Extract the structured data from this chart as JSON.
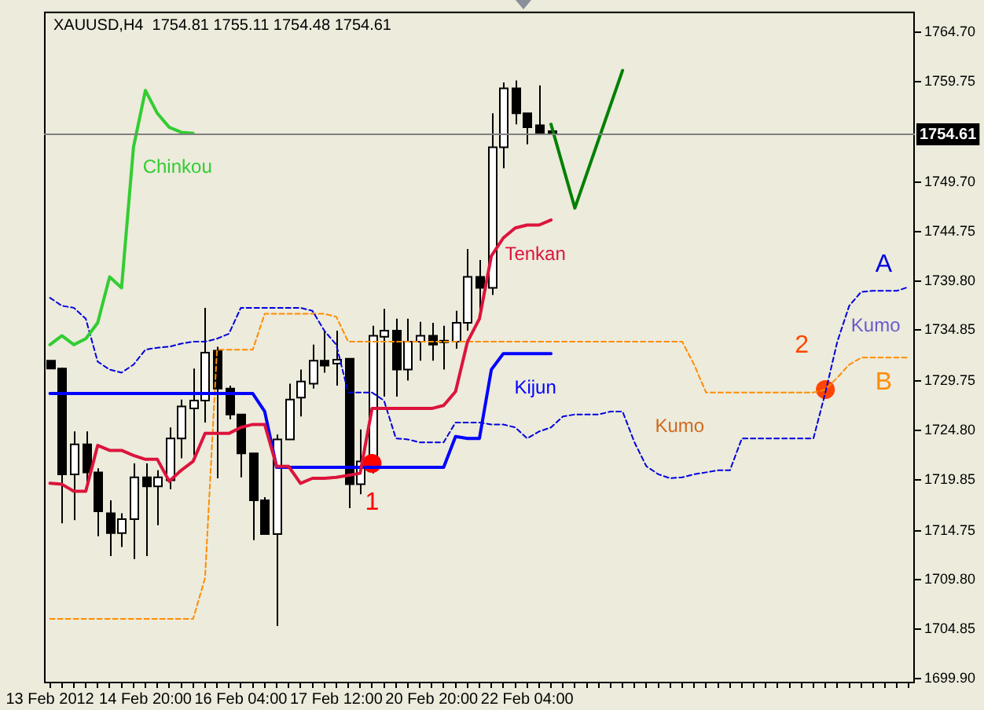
{
  "chart_data": {
    "type": "candlestick",
    "title": "XAUUSD,H4  1754.81 1755.11 1754.48 1754.61",
    "categories": [
      "13 Feb 2012",
      null,
      null,
      null,
      null,
      null,
      null,
      null,
      "14 Feb 20:00",
      null,
      null,
      null,
      null,
      null,
      null,
      null,
      "16 Feb 04:00",
      null,
      null,
      null,
      null,
      null,
      null,
      null,
      "17 Feb 12:00",
      null,
      null,
      null,
      null,
      null,
      null,
      null,
      "20 Feb 20:00",
      null,
      null,
      null,
      null,
      null,
      null,
      null,
      "22 Feb 04:00",
      null,
      null,
      null,
      null,
      null,
      null,
      null,
      null,
      null,
      null,
      null,
      null,
      null,
      null,
      null,
      null,
      null,
      null,
      null,
      null,
      null,
      null,
      null,
      null,
      null,
      null,
      null,
      null,
      null,
      null,
      null,
      null
    ],
    "ohlc": [
      [
        1731.8,
        1731.8,
        1731.0,
        1731.0
      ],
      [
        1731.0,
        1731.1,
        1715.5,
        1720.4
      ],
      [
        1720.4,
        1724.7,
        1715.8,
        1723.4
      ],
      [
        1723.4,
        1724.7,
        1719.5,
        1720.6
      ],
      [
        1720.6,
        1721.0,
        1714.2,
        1716.7
      ],
      [
        1716.5,
        1717.8,
        1712.2,
        1714.5
      ],
      [
        1714.5,
        1716.5,
        1713.1,
        1715.9
      ],
      [
        1715.9,
        1721.5,
        1711.9,
        1720.1
      ],
      [
        1720.1,
        1721.5,
        1712.2,
        1719.2
      ],
      [
        1719.2,
        1720.8,
        1715.3,
        1720.1
      ],
      [
        1719.8,
        1725.1,
        1718.9,
        1724.0
      ],
      [
        1724.0,
        1727.9,
        1722.0,
        1727.2
      ],
      [
        1727.0,
        1731.0,
        1722.3,
        1727.8
      ],
      [
        1727.8,
        1737.1,
        1725.6,
        1732.6
      ],
      [
        1732.8,
        1733.2,
        1720.0,
        1729.0
      ],
      [
        1729.0,
        1729.3,
        1725.9,
        1726.4
      ],
      [
        1726.4,
        1726.4,
        1720.1,
        1722.5
      ],
      [
        1722.5,
        1722.5,
        1713.8,
        1717.8
      ],
      [
        1717.8,
        1718.1,
        1714.4,
        1714.4
      ],
      [
        1714.4,
        1724.4,
        1705.2,
        1723.9
      ],
      [
        1723.9,
        1729.5,
        1723.9,
        1727.9
      ],
      [
        1728.1,
        1730.9,
        1726.2,
        1729.7
      ],
      [
        1729.5,
        1733.4,
        1729.0,
        1731.8
      ],
      [
        1731.8,
        1734.8,
        1730.6,
        1731.3
      ],
      [
        1731.5,
        1734.8,
        1729.3,
        1731.9
      ],
      [
        1732.0,
        1732.0,
        1717.0,
        1719.4
      ],
      [
        1719.4,
        1724.9,
        1718.4,
        1721.7
      ],
      [
        1721.2,
        1735.3,
        1720.5,
        1734.3
      ],
      [
        1734.2,
        1737.0,
        1728.2,
        1734.8
      ],
      [
        1734.8,
        1736.0,
        1728.2,
        1730.9
      ],
      [
        1730.9,
        1736.0,
        1729.8,
        1733.7
      ],
      [
        1733.7,
        1735.7,
        1731.8,
        1734.3
      ],
      [
        1734.3,
        1735.6,
        1731.8,
        1733.4
      ],
      [
        1733.8,
        1735.3,
        1730.9,
        1733.7
      ],
      [
        1733.7,
        1736.8,
        1733.0,
        1735.6
      ],
      [
        1735.6,
        1743.0,
        1734.8,
        1740.2
      ],
      [
        1740.2,
        1741.9,
        1736.8,
        1739.1
      ],
      [
        1739.1,
        1756.6,
        1738.4,
        1753.2
      ],
      [
        1753.2,
        1759.7,
        1751.1,
        1759.1
      ],
      [
        1759.1,
        1759.9,
        1755.5,
        1756.6
      ],
      [
        1756.6,
        1756.6,
        1753.5,
        1755.2
      ],
      [
        1755.4,
        1759.4,
        1754.5,
        1754.6
      ],
      [
        1754.81,
        1755.11,
        1754.48,
        1754.61
      ],
      null,
      null,
      null,
      null,
      null,
      null,
      null,
      null,
      null,
      null,
      null,
      null,
      null,
      null,
      null,
      null,
      null,
      null,
      null,
      null,
      null,
      null,
      null,
      null,
      null,
      null,
      null,
      null,
      null,
      null
    ],
    "series": [
      {
        "type": "line",
        "name": "Tenkan",
        "color": "#dc143c",
        "marker": "none",
        "line_style": "solid",
        "values": [
          1719.5,
          1719.4,
          1718.7,
          1718.7,
          1723.3,
          1722.8,
          1722.8,
          1722.3,
          1721.9,
          1721.9,
          1719.7,
          1720.8,
          1721.7,
          1724.5,
          1724.5,
          1724.5,
          1725.1,
          1725.4,
          1725.4,
          1721.2,
          1721.2,
          1719.5,
          1720.0,
          1720.0,
          1720.1,
          1720.3,
          1720.5,
          1727.0,
          1727.0,
          1727.0,
          1727.0,
          1727.0,
          1727.0,
          1727.3,
          1728.7,
          1733.7,
          1736.0,
          1742.3,
          1744.1,
          1745.1,
          1745.4,
          1745.4,
          1745.9,
          null,
          null,
          null,
          null,
          null,
          null,
          null,
          null,
          null,
          null,
          null,
          null,
          null,
          null,
          null,
          null,
          null,
          null,
          null,
          null,
          null,
          null,
          null,
          null,
          null,
          null,
          null,
          null,
          null,
          null
        ]
      },
      {
        "type": "line",
        "name": "Kijun",
        "color": "#0000ff",
        "marker": "none",
        "line_style": "solid",
        "values": [
          1728.5,
          1728.5,
          1728.5,
          1728.5,
          1728.5,
          1728.5,
          1728.5,
          1728.5,
          1728.5,
          1728.5,
          1728.5,
          1728.5,
          1728.5,
          1728.5,
          1728.5,
          1728.5,
          1728.5,
          1728.5,
          1726.7,
          1721.1,
          1721.1,
          1721.1,
          1721.1,
          1721.1,
          1721.1,
          1721.1,
          1721.1,
          1721.1,
          1721.1,
          1721.1,
          1721.1,
          1721.1,
          1721.1,
          1721.1,
          1724.2,
          1724.0,
          1724.0,
          1730.9,
          1732.5,
          1732.5,
          1732.5,
          1732.5,
          1732.5,
          null,
          null,
          null,
          null,
          null,
          null,
          null,
          null,
          null,
          null,
          null,
          null,
          null,
          null,
          null,
          null,
          null,
          null,
          null,
          null,
          null,
          null,
          null,
          null,
          null,
          null,
          null,
          null,
          null,
          null
        ]
      },
      {
        "type": "line",
        "name": "Chinkou",
        "color": "#32cd32",
        "marker": "none",
        "line_style": "solid",
        "values": [
          1733.4,
          1734.3,
          1733.4,
          1734.0,
          1735.6,
          1740.2,
          1739.1,
          1753.2,
          1758.9,
          1756.6,
          1755.2,
          1754.7,
          1754.6,
          null,
          null,
          null,
          null,
          null,
          null,
          null,
          null,
          null,
          null,
          null,
          null,
          null,
          null,
          null,
          null,
          null,
          null,
          null,
          null,
          null,
          null,
          null,
          null,
          null,
          null,
          null,
          null,
          null,
          null,
          null,
          null,
          null,
          null,
          null,
          null,
          null,
          null,
          null,
          null,
          null,
          null,
          null,
          null,
          null,
          null,
          null,
          null,
          null,
          null,
          null,
          null,
          null,
          null,
          null,
          null,
          null,
          null,
          null,
          null
        ]
      },
      {
        "type": "line",
        "color": "#008000",
        "marker": "none",
        "line_style": "solid",
        "values": [
          null,
          null,
          null,
          null,
          null,
          null,
          null,
          null,
          null,
          null,
          null,
          null,
          null,
          null,
          null,
          null,
          null,
          null,
          null,
          null,
          null,
          null,
          null,
          null,
          null,
          null,
          null,
          null,
          null,
          null,
          null,
          null,
          null,
          null,
          null,
          null,
          null,
          null,
          null,
          null,
          null,
          null,
          1755.5,
          null,
          1747.1,
          null,
          null,
          null,
          1760.9,
          null,
          null,
          null,
          null,
          null,
          null,
          null,
          null,
          null,
          null,
          null,
          null,
          null,
          null,
          null,
          null,
          null,
          null,
          null,
          null,
          null,
          null,
          null,
          null
        ]
      },
      {
        "type": "line",
        "name": "A",
        "color": "#0000dd",
        "marker": "none",
        "line_style": "dashed",
        "values": [
          1738.1,
          1737.3,
          1737.1,
          1736.0,
          1731.7,
          1730.9,
          1730.6,
          1731.4,
          1732.9,
          1733.1,
          1733.2,
          1733.5,
          1733.7,
          1733.7,
          1734.0,
          1734.5,
          1737.1,
          1737.1,
          1737.1,
          1737.1,
          1737.1,
          1737.1,
          1736.8,
          1734.8,
          1733.4,
          1728.6,
          1728.6,
          1728.6,
          1727.8,
          1724.0,
          1723.9,
          1723.6,
          1723.6,
          1723.6,
          1725.6,
          1725.6,
          1725.6,
          1725.4,
          1725.4,
          1725.1,
          1724.0,
          1724.7,
          1725.1,
          1726.2,
          1726.4,
          1726.4,
          1726.4,
          1726.7,
          1726.7,
          1723.6,
          1721.2,
          1720.4,
          1720.0,
          1720.1,
          1720.4,
          1720.6,
          1720.8,
          1720.8,
          1724.0,
          1724.0,
          1724.0,
          1724.0,
          1724.0,
          1724.0,
          1724.0,
          1728.6,
          1733.7,
          1737.3,
          1738.7,
          1738.8,
          1738.8,
          1738.8,
          1739.2
        ]
      },
      {
        "type": "line",
        "name": "B",
        "color": "#ff8c00",
        "marker": "none",
        "line_style": "dashed",
        "values": [
          1705.9,
          1705.9,
          1705.9,
          1705.9,
          1705.9,
          1705.9,
          1705.9,
          1705.9,
          1705.9,
          1705.9,
          1705.9,
          1705.9,
          1705.9,
          1710.0,
          1732.9,
          1732.9,
          1732.9,
          1732.9,
          1736.5,
          1736.5,
          1736.5,
          1736.5,
          1736.5,
          1736.5,
          1736.2,
          1733.7,
          1733.7,
          1733.7,
          1733.7,
          1733.7,
          1733.7,
          1733.7,
          1733.7,
          1733.7,
          1733.7,
          1733.7,
          1733.7,
          1733.7,
          1733.7,
          1733.7,
          1733.7,
          1733.7,
          1733.7,
          1733.7,
          1733.7,
          1733.7,
          1733.7,
          1733.7,
          1733.7,
          1733.7,
          1733.7,
          1733.7,
          1733.7,
          1733.7,
          1731.4,
          1728.6,
          1728.6,
          1728.6,
          1728.6,
          1728.6,
          1728.6,
          1728.6,
          1728.6,
          1728.6,
          1728.6,
          1728.9,
          1730.1,
          1731.4,
          1732.1,
          1732.1,
          1732.1,
          1732.1,
          1732.1
        ]
      },
      {
        "type": "scatter",
        "name": "1",
        "color": "#ff0000",
        "marker": "circle",
        "values": [
          null,
          null,
          null,
          null,
          null,
          null,
          null,
          null,
          null,
          null,
          null,
          null,
          null,
          null,
          null,
          null,
          null,
          null,
          null,
          null,
          null,
          null,
          null,
          null,
          null,
          null,
          null,
          1721.5,
          null,
          null,
          null,
          null,
          null,
          null,
          null,
          null,
          null,
          null,
          null,
          null,
          null,
          null,
          null,
          null,
          null,
          null,
          null,
          null,
          null,
          null,
          null,
          null,
          null,
          null,
          null,
          null,
          null,
          null,
          null,
          null,
          null,
          null,
          null,
          null,
          null,
          null,
          null,
          null,
          null,
          null,
          null,
          null,
          null
        ]
      },
      {
        "type": "scatter",
        "name": "2",
        "color": "#ff4500",
        "marker": "circle",
        "values": [
          null,
          null,
          null,
          null,
          null,
          null,
          null,
          null,
          null,
          null,
          null,
          null,
          null,
          null,
          null,
          null,
          null,
          null,
          null,
          null,
          null,
          null,
          null,
          null,
          null,
          null,
          null,
          null,
          null,
          null,
          null,
          null,
          null,
          null,
          null,
          null,
          null,
          null,
          null,
          null,
          null,
          null,
          null,
          null,
          null,
          null,
          null,
          null,
          null,
          null,
          null,
          null,
          null,
          null,
          null,
          null,
          null,
          null,
          null,
          null,
          null,
          null,
          null,
          null,
          null,
          1728.9,
          null,
          null,
          null,
          null,
          null,
          null,
          null
        ]
      }
    ],
    "ylim": [
      1699.6,
      1766.8
    ],
    "yticks": [
      {
        "value": 1764.7,
        "label": "1764.70"
      },
      1759.75,
      {
        "value": 1749.7,
        "label": "1749.70"
      },
      1744.75,
      {
        "value": 1739.8,
        "label": "1739.80"
      },
      1734.85,
      1729.75,
      {
        "value": 1724.8,
        "label": "1724.80"
      },
      1719.85,
      1714.75,
      {
        "value": 1709.8,
        "label": "1709.80"
      },
      1704.85,
      {
        "value": 1699.9,
        "label": "1699.90"
      }
    ],
    "ref_lines": [
      {
        "axis": "y",
        "value": 1754.61,
        "label": "1754.61",
        "color": "#808080"
      }
    ],
    "annotations": [
      "Kumo",
      "Kumo"
    ],
    "grid": false,
    "legend": false
  }
}
